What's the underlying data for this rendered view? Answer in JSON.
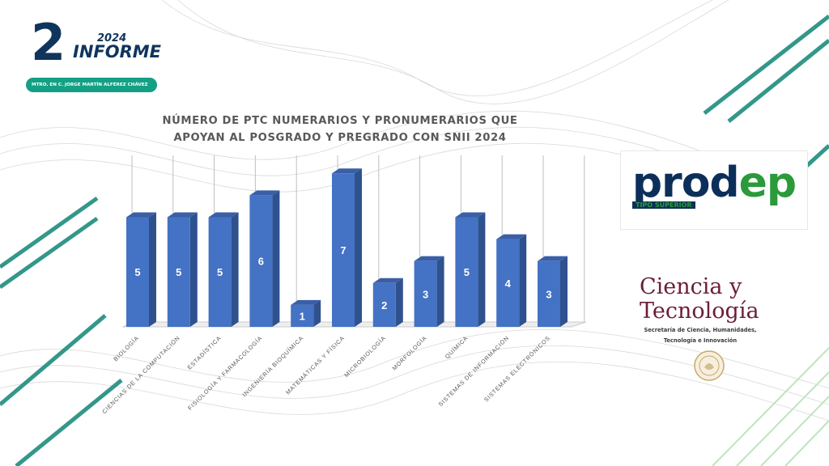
{
  "header": {
    "report_number": "2",
    "report_year": "2024",
    "report_word": "INFORME",
    "author": "MTRO. EN C. JORGE MARTÍN ALFÉREZ CHÁVEZ"
  },
  "chart_data": {
    "type": "bar",
    "title_line1": "NÚMERO DE PTC NUMERARIOS Y PRONUMERARIOS QUE",
    "title_line2": "APOYAN AL POSGRADO Y PREGRADO CON SNII 2024",
    "categories": [
      "BIOLOGÍA",
      "CIENCIAS DE LA COMPUTACIÓN",
      "ESTADÍSTICA",
      "FISIOLOGÍA Y FARMACOLOGÍA",
      "INGENIERÍA BIOQUÍMICA",
      "MATEMÁTICAS Y FÍSICA",
      "MICROBIOLOGÍA",
      "MORFOLOGÍA",
      "QUÍMICA",
      "SISTEMAS DE INFORMACIÓN",
      "SISTEMAS ELECTRÓNICOS"
    ],
    "values": [
      5,
      5,
      5,
      6,
      1,
      7,
      2,
      3,
      5,
      4,
      3
    ],
    "ylim": [
      0,
      7.6
    ],
    "grid": true,
    "bar_color": "#4472c4",
    "data_label_color": "#ffffff"
  },
  "logos": {
    "prodep_main_a": "prod",
    "prodep_main_b": "ep",
    "prodep_sub": "TIPO SUPERIOR",
    "ciencia_line1": "Ciencia y",
    "ciencia_line2": "Tecnología",
    "ciencia_sub1": "Secretaría de Ciencia, Humanidades,",
    "ciencia_sub2": "Tecnología e Innovación"
  },
  "colors": {
    "accent_teal": "#14a085",
    "navy": "#10355d",
    "wine": "#6b1d3a"
  }
}
